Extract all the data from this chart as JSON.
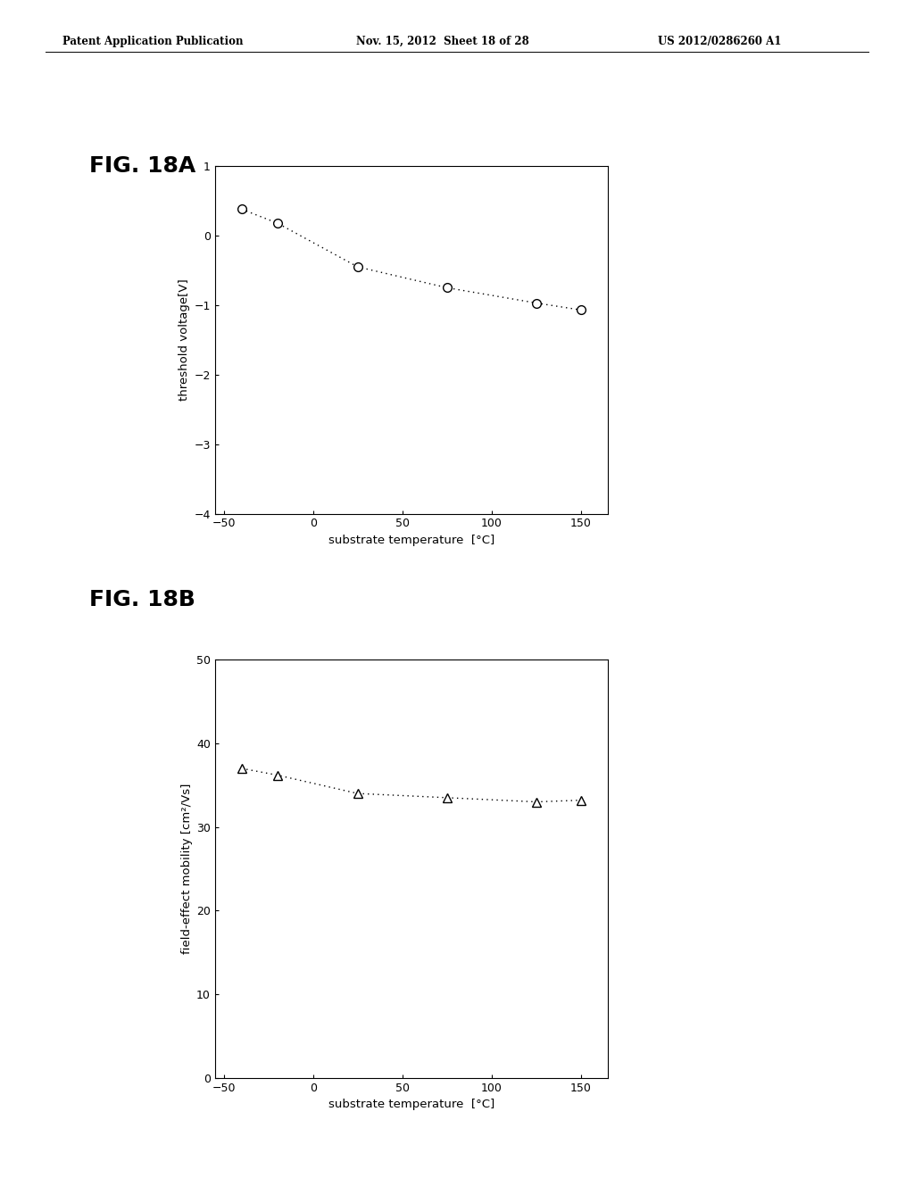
{
  "header_left": "Patent Application Publication",
  "header_mid": "Nov. 15, 2012  Sheet 18 of 28",
  "header_right": "US 2012/0286260 A1",
  "fig_a_label": "FIG. 18A",
  "fig_b_label": "FIG. 18B",
  "fig_a": {
    "x": [
      -40,
      -20,
      25,
      75,
      125,
      150
    ],
    "y": [
      0.38,
      0.18,
      -0.45,
      -0.75,
      -0.97,
      -1.07
    ],
    "xlabel": "substrate temperature  [°C]",
    "ylabel": "threshold voltage[V]",
    "xlim": [
      -55,
      165
    ],
    "ylim": [
      -4,
      1
    ],
    "xticks": [
      -50,
      0,
      50,
      100,
      150
    ],
    "yticks": [
      -4,
      -3,
      -2,
      -1,
      0,
      1
    ],
    "marker": "o",
    "marker_size": 7,
    "line_style": ":",
    "line_color": "#000000",
    "marker_face": "#ffffff",
    "marker_edge": "#000000"
  },
  "fig_b": {
    "x": [
      -40,
      -20,
      25,
      75,
      125,
      150
    ],
    "y": [
      37.0,
      36.2,
      34.0,
      33.5,
      33.0,
      33.2
    ],
    "xlabel": "substrate temperature  [°C]",
    "ylabel": "field-effect mobility [cm²/Vs]",
    "xlim": [
      -55,
      165
    ],
    "ylim": [
      0,
      50
    ],
    "xticks": [
      -50,
      0,
      50,
      100,
      150
    ],
    "yticks": [
      0,
      10,
      20,
      30,
      40,
      50
    ],
    "marker": "^",
    "marker_size": 7,
    "line_style": ":",
    "line_color": "#000000",
    "marker_face": "#ffffff",
    "marker_edge": "#000000"
  },
  "background_color": "#ffffff",
  "header_fontsize": 8.5,
  "fig_label_fontsize": 18,
  "axis_label_fontsize": 9.5,
  "tick_fontsize": 9
}
